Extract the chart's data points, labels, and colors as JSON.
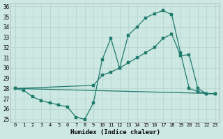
{
  "xlabel": "Humidex (Indice chaleur)",
  "background_color": "#cde8e2",
  "grid_color": "#b8d8d0",
  "line_color": "#1e7a6d",
  "xlim": [
    -0.5,
    23.5
  ],
  "ylim": [
    24.7,
    36.3
  ],
  "xticks": [
    0,
    1,
    2,
    3,
    4,
    5,
    6,
    7,
    8,
    9,
    10,
    11,
    12,
    13,
    14,
    15,
    16,
    17,
    18,
    19,
    20,
    21,
    22,
    23
  ],
  "yticks": [
    25,
    26,
    27,
    28,
    29,
    30,
    31,
    32,
    33,
    34,
    35,
    36
  ],
  "series": [
    {
      "x": [
        0,
        1,
        2,
        3,
        4,
        5,
        6,
        7,
        8,
        9,
        10,
        11,
        12,
        13,
        14,
        15,
        16,
        17,
        18,
        19,
        20,
        21,
        22,
        23
      ],
      "y": [
        28.0,
        27.8,
        27.2,
        26.8,
        26.6,
        26.4,
        26.2,
        25.2,
        25.0,
        26.6,
        30.8,
        32.9,
        30.0,
        33.2,
        34.0,
        34.9,
        35.3,
        35.6,
        35.2,
        31.5,
        28.0,
        27.7,
        27.5,
        27.5
      ],
      "marker": true
    },
    {
      "x": [
        0,
        9,
        10,
        11,
        12,
        13,
        14,
        15,
        16,
        17,
        18,
        19,
        20,
        21,
        22,
        23
      ],
      "y": [
        28.0,
        28.3,
        29.3,
        29.6,
        30.0,
        30.5,
        31.0,
        31.5,
        32.0,
        32.9,
        33.3,
        31.2,
        31.3,
        28.0,
        27.5,
        27.5
      ],
      "marker": true
    },
    {
      "x": [
        0,
        23
      ],
      "y": [
        28.0,
        27.5
      ],
      "marker": false
    }
  ]
}
